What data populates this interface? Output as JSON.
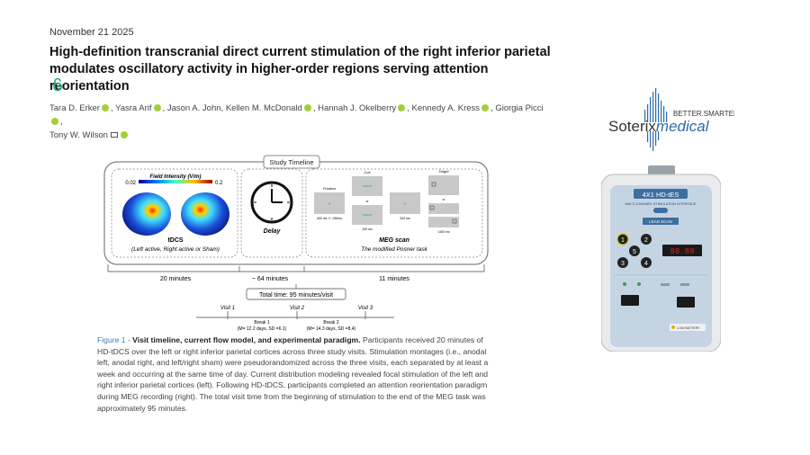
{
  "date": "November 21 2025",
  "title": "High-definition transcranial direct current stimulation of the right inferior parietal modulates oscillatory activity in higher-order regions serving attention reorientation",
  "authors": [
    "Tara D. Erker",
    "Yasra Arif",
    "Jason A. John",
    "Kellen M. McDonald",
    "Hannah J. Okelberry",
    "Kennedy A. Kress",
    "Giorgia Picci",
    "Tony W. Wilson"
  ],
  "figure": {
    "section_title": "Study Timeline",
    "field_label": "Field Intensity (V/m)",
    "field_min": "0.02",
    "field_max": "0.2",
    "tdcs_label": "tDCS",
    "tdcs_sub": "(Left active, Right active or Sham)",
    "delay_label": "Delay",
    "meg_label": "MEG scan",
    "meg_sub": "The modified Posner task",
    "posner_fixation": "Fixation",
    "posner_cue": "Cue",
    "posner_target": "Target",
    "posner_or1": "or",
    "posner_or2": "or",
    "posner_t1": "400 ms +/- 250ms",
    "posner_t2": "100 ms",
    "posner_t3": "200 ms",
    "posner_t4": "1400 ms",
    "dur_tdcs": "20 minutes",
    "dur_delay": "~ 64 minutes",
    "dur_meg": "11 minutes",
    "total_time": "Total time: 95 minutes/visit",
    "visit1": "Visit 1",
    "visit2": "Visit 2",
    "visit3": "Visit 3",
    "break1": "Break 1",
    "break1_stats": "(M= 12.2 days, SD =6.1)",
    "break2": "Break 2",
    "break2_stats": "(M= 14.3 days, SD =8.4)"
  },
  "caption": {
    "label": "Figure 1 - ",
    "bold": "Visit timeline, current flow model, and experimental paradigm.",
    "text": " Participants received 20 minutes of HD-tDCS over the left or right inferior parietal cortices across three study visits. Stimulation montages (i.e., anodal left, anodal right, and left/right sham) were pseudorandomized across the three visits, each separated by at least a week and occurring at the same time of day. Current distribution modeling revealed focal stimulation of the left and right inferior parietal cortices (left). Following HD-tDCS, participants completed an attention reorientation paradigm during MEG recording (right). The total visit time from the beginning of stimulation to the end of the MEG task was approximately 95 minutes."
  },
  "logo": {
    "tagline": "BETTER.SMARTER.",
    "brand_part1": "Soterix",
    "brand_part2": "medical"
  },
  "device": {
    "model": "4X1 HD-tES",
    "subtitle": "MULTI-CHANNEL STIMULATION INTERFACE",
    "lead_scan": "LEAD SCAN",
    "display": "88.88",
    "channel_1": "1",
    "channel_2": "2",
    "channel_3": "3",
    "channel_4": "4",
    "channel_5": "5",
    "low_battery": "LOW BATTERY"
  },
  "colors": {
    "caption_label": "#3a79c0",
    "orcid": "#a6ce39",
    "logo_blue": "#2b6cb0",
    "device_panel": "#c5d4e3"
  }
}
